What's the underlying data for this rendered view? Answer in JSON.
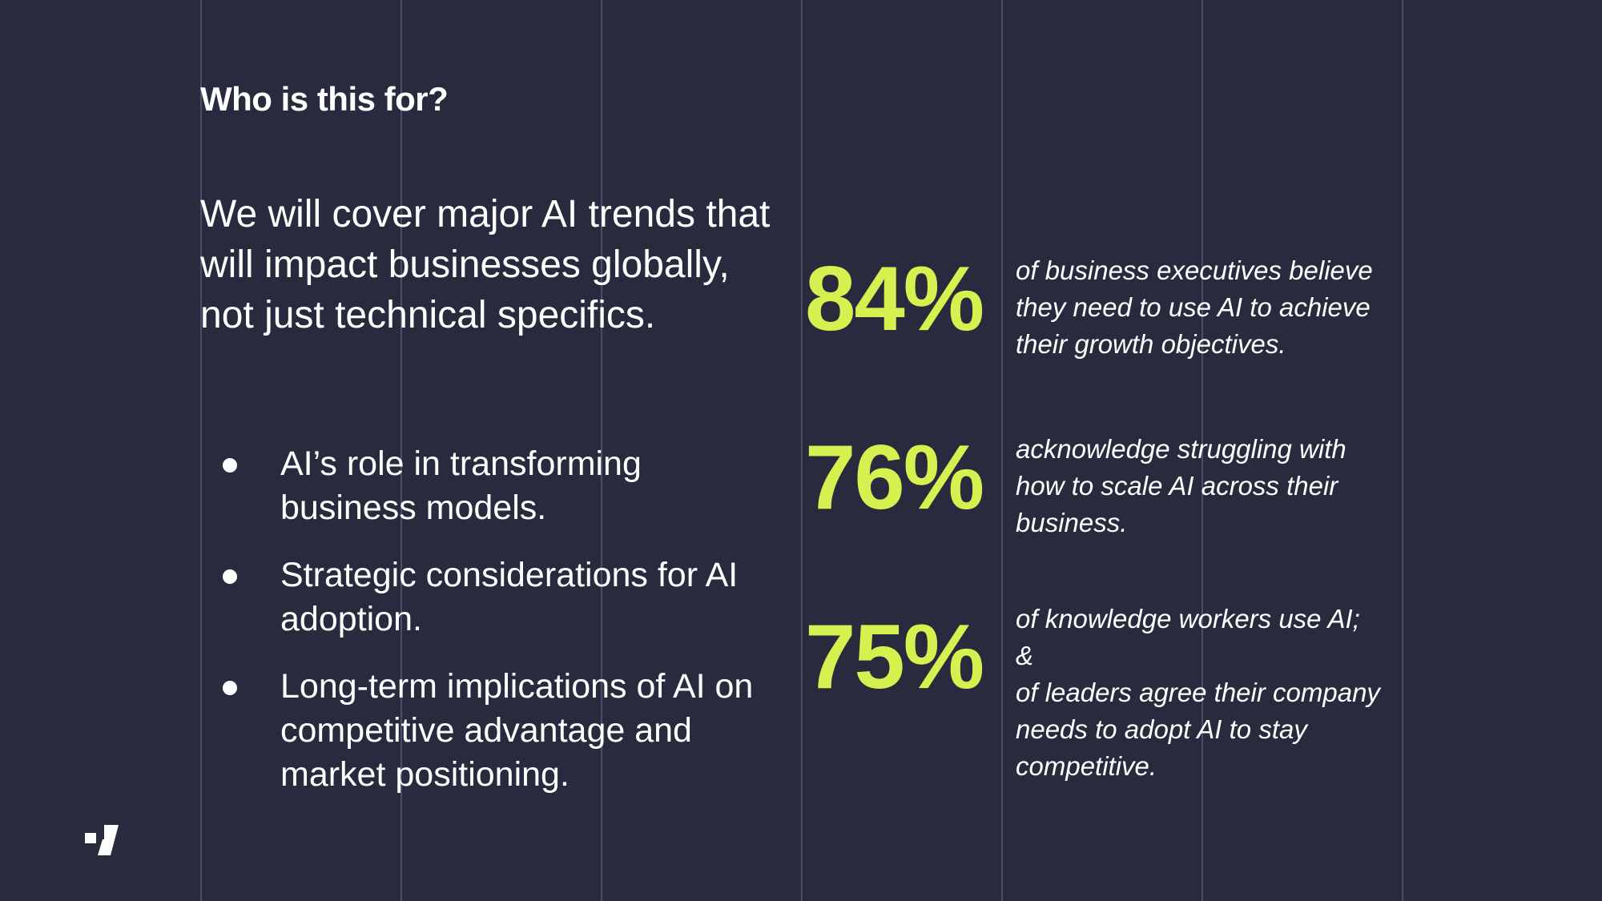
{
  "slide": {
    "background": "#282b3d",
    "accent": "#d6f04f",
    "heading": "Who is this for?",
    "intro": "We will cover major AI trends that will impact businesses globally, not just technical specifics.",
    "bullets": [
      "AI’s role in transforming business models.",
      "Strategic considerations for AI adoption.",
      "Long-term implications of AI on competitive advantage and market positioning."
    ],
    "stats": [
      {
        "value": "84%",
        "lines": [
          "of business executives believe",
          "they need to use AI to achieve",
          "their growth objectives."
        ]
      },
      {
        "value": "76%",
        "lines": [
          "acknowledge struggling with",
          "how to scale AI across their",
          "business."
        ]
      },
      {
        "value": "75%",
        "lines": [
          "of knowledge workers use AI;",
          "&",
          "of leaders agree their company",
          "needs to adopt AI to stay",
          "competitive."
        ]
      }
    ],
    "logo_icon": "brand-logo-icon"
  }
}
